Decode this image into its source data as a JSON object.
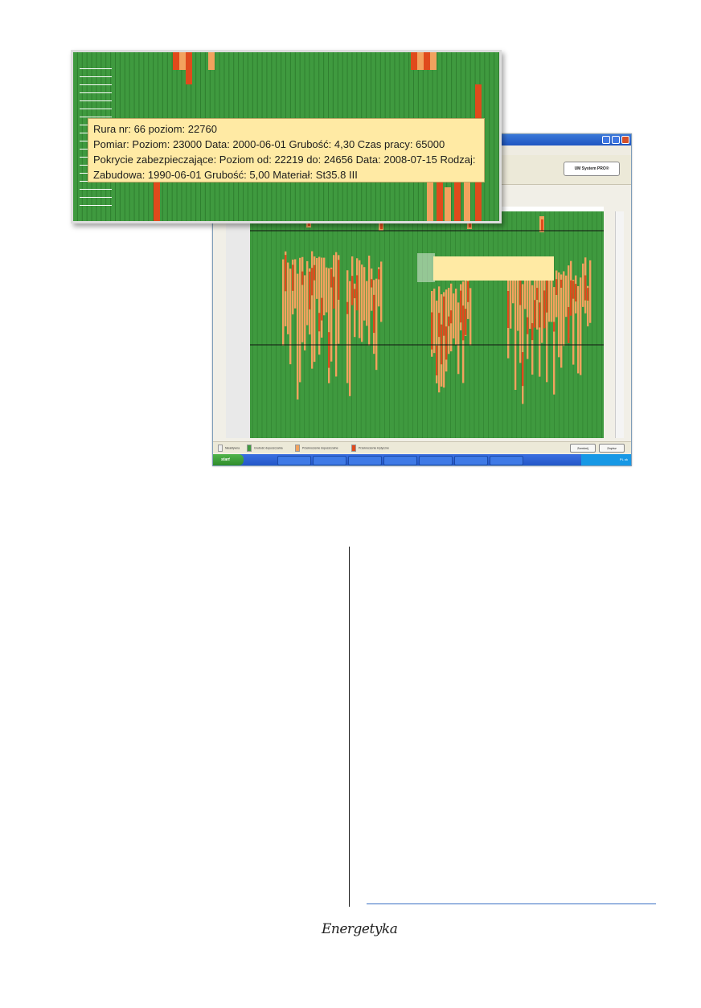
{
  "zoom_tooltip": {
    "line1": "Rura nr: 66 poziom: 22760",
    "line2": "Pomiar:   Poziom: 23000 Data: 2000-06-01 Grubość: 4,30 Czas pracy: 65000",
    "line3": "Pokrycie zabezpieczające: Poziom od: 22219 do: 24656 Data: 2008-07-15 Rodzaj:",
    "line4": "Zabudowa: 1990-06-01 Grubość: 5,00 Materiał: St35.8 III"
  },
  "toolbar": {
    "badge": "UM System PRO®"
  },
  "status": {
    "legend": [
      "Nieaktywna",
      "Grubość dopuszczalna",
      "Przekroczenie dopuszczalne",
      "Przekroczenie krytyczne"
    ],
    "btn_cancel": "Zamknij",
    "btn_ok": "Zapisz"
  },
  "taskbar": {
    "start": "start",
    "clock": "PL ok"
  },
  "logo": {
    "text": "Energetyka"
  },
  "colors": {
    "pipe_ok": "#3f9a3f",
    "pipe_ok_dark": "#2f7f2f",
    "warning": "#f2a25e",
    "critical": "#e04a1c",
    "tooltip_bg": "#ffeaa4",
    "footer_rule": "#3a6fc4"
  }
}
